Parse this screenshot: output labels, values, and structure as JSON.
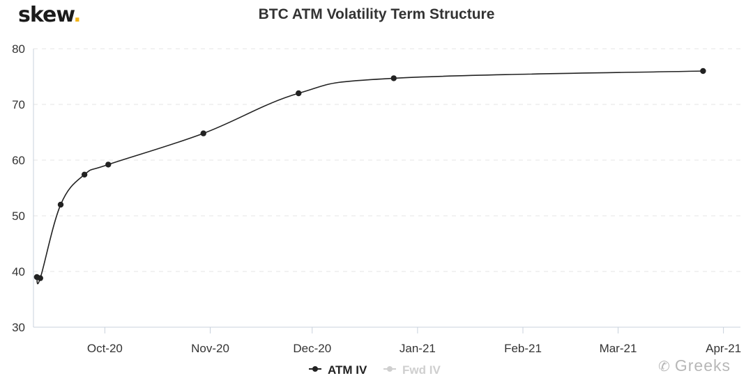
{
  "brand": {
    "name": "skew",
    "dot": ".",
    "accent": "#f2b418"
  },
  "watermark": {
    "icon": "wechat-icon",
    "icon_glyph": "✆",
    "text": "Greeks"
  },
  "colors": {
    "line": "#222222",
    "grid": "#e6e6e6",
    "axis": "#c8d1dc",
    "fwd_legend": "#cfcfcf"
  },
  "chart_data": {
    "type": "line",
    "title": "BTC ATM Volatility Term Structure",
    "xlabel": "",
    "ylabel": "",
    "ylim": [
      30,
      80
    ],
    "yticks": [
      30,
      40,
      50,
      60,
      70,
      80
    ],
    "xlim": [
      "2020-09-10",
      "2021-04-06"
    ],
    "xticks": [
      {
        "date": "2020-10-01",
        "label": "Oct-20"
      },
      {
        "date": "2020-11-01",
        "label": "Nov-20"
      },
      {
        "date": "2020-12-01",
        "label": "Dec-20"
      },
      {
        "date": "2021-01-01",
        "label": "Jan-21"
      },
      {
        "date": "2021-02-01",
        "label": "Feb-21"
      },
      {
        "date": "2021-03-01",
        "label": "Mar-21"
      },
      {
        "date": "2021-04-01",
        "label": "Apr-21"
      }
    ],
    "grid": true,
    "legend_position": "bottom-center",
    "series": [
      {
        "name": "ATM IV",
        "visible": true,
        "points": [
          {
            "x": "2020-09-11",
            "y": 39.0
          },
          {
            "x": "2020-09-12",
            "y": 38.8
          },
          {
            "x": "2020-09-18",
            "y": 52.0
          },
          {
            "x": "2020-09-25",
            "y": 57.4
          },
          {
            "x": "2020-10-02",
            "y": 59.2
          },
          {
            "x": "2020-10-30",
            "y": 64.8
          },
          {
            "x": "2020-11-27",
            "y": 72.0
          },
          {
            "x": "2020-12-25",
            "y": 74.7
          },
          {
            "x": "2021-03-26",
            "y": 76.0
          }
        ]
      },
      {
        "name": "Fwd IV",
        "visible": false,
        "points": []
      }
    ]
  }
}
